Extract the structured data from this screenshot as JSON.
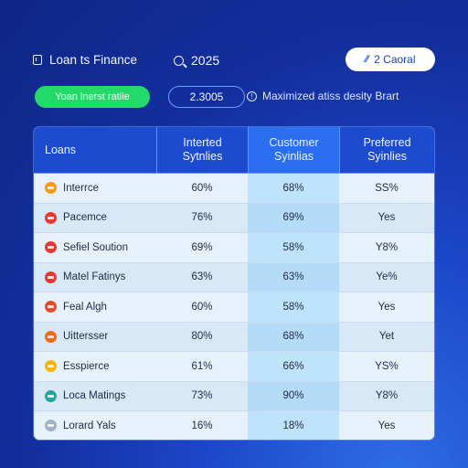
{
  "header": {
    "brand_label": "Loan ts Finance",
    "year_label": "2025",
    "cancel_label": "2 Caoral",
    "cancel_icon_glyph": "∕∕"
  },
  "controls": {
    "green_pill_label": "Yoan lnerst ratile",
    "value_box_label": "2.3005",
    "info_label": "Maximized atiss desity Brart",
    "info_icon_glyph": "!"
  },
  "table": {
    "headers": [
      "Loans",
      "Interted\nSytnlies",
      "Customer\nSyinlias",
      "Preferred\nSyinlies"
    ],
    "highlight_column": 2,
    "rows": [
      {
        "icon_name": "orange-blue-circle-icon",
        "icon_color": "#f39c12",
        "name": "Interrce",
        "c1": "60%",
        "c2": "68%",
        "c3": "SS%"
      },
      {
        "icon_name": "red-circle-icon",
        "icon_color": "#e53935",
        "name": "Pacemce",
        "c1": "76%",
        "c2": "69%",
        "c3": "Yes"
      },
      {
        "icon_name": "red-circle-icon",
        "icon_color": "#e53935",
        "name": "Sefiel Soution",
        "c1": "69%",
        "c2": "58%",
        "c3": "Y8%"
      },
      {
        "icon_name": "red-circle-icon",
        "icon_color": "#e53935",
        "name": "Matel Fatinys",
        "c1": "63%",
        "c2": "63%",
        "c3": "Ye%"
      },
      {
        "icon_name": "red-square-icon",
        "icon_color": "#e64a2e",
        "name": "Feal Algh",
        "c1": "60%",
        "c2": "58%",
        "c3": "Yes"
      },
      {
        "icon_name": "orange-circle-icon",
        "icon_color": "#f26b1d",
        "name": "Uittersser",
        "c1": "80%",
        "c2": "68%",
        "c3": "Yet"
      },
      {
        "icon_name": "yellow-circle-icon",
        "icon_color": "#f5b400",
        "name": "Esspierce",
        "c1": "61%",
        "c2": "66%",
        "c3": "YS%"
      },
      {
        "icon_name": "green-blue-circle-icon",
        "icon_color": "#26a69a",
        "name": "Loca Matings",
        "c1": "73%",
        "c2": "90%",
        "c3": "Y8%"
      },
      {
        "icon_name": "gray-circle-icon",
        "icon_color": "#9fb2c8",
        "name": "Lorard Yals",
        "c1": "16%",
        "c2": "18%",
        "c3": "Yes"
      }
    ]
  },
  "colors": {
    "accent_green": "#22d96a",
    "header_blue": "#1d4bcf",
    "highlight_blue": "#2b6ef0"
  }
}
